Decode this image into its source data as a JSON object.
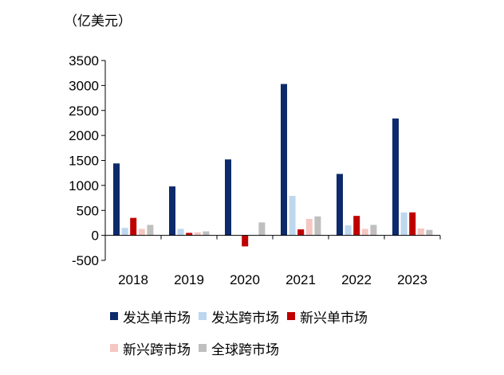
{
  "chart_data": {
    "type": "bar",
    "unit_label": "（亿美元）",
    "categories": [
      "2018",
      "2019",
      "2020",
      "2021",
      "2022",
      "2023"
    ],
    "ylim": [
      -500,
      3500
    ],
    "yticks": [
      "3500",
      "3000",
      "2500",
      "2000",
      "1500",
      "1000",
      "500",
      "0",
      "-500"
    ],
    "ytick_values": [
      3500,
      3000,
      2500,
      2000,
      1500,
      1000,
      500,
      0,
      -500
    ],
    "grid": false,
    "legend_position": "bottom",
    "series": [
      {
        "name": "发达单市场",
        "color": "#0d2a6b",
        "values": [
          1440,
          980,
          1520,
          3030,
          1230,
          2340
        ]
      },
      {
        "name": "发达跨市场",
        "color": "#bdd7ee",
        "values": [
          150,
          130,
          0,
          790,
          200,
          460
        ]
      },
      {
        "name": "新兴单市场",
        "color": "#c00000",
        "values": [
          350,
          50,
          -220,
          120,
          390,
          460
        ]
      },
      {
        "name": "新兴跨市场",
        "color": "#f4c7c3",
        "values": [
          130,
          60,
          0,
          330,
          130,
          140
        ]
      },
      {
        "name": "全球跨市场",
        "color": "#bfbfbf",
        "values": [
          210,
          80,
          260,
          380,
          210,
          110
        ]
      }
    ]
  }
}
